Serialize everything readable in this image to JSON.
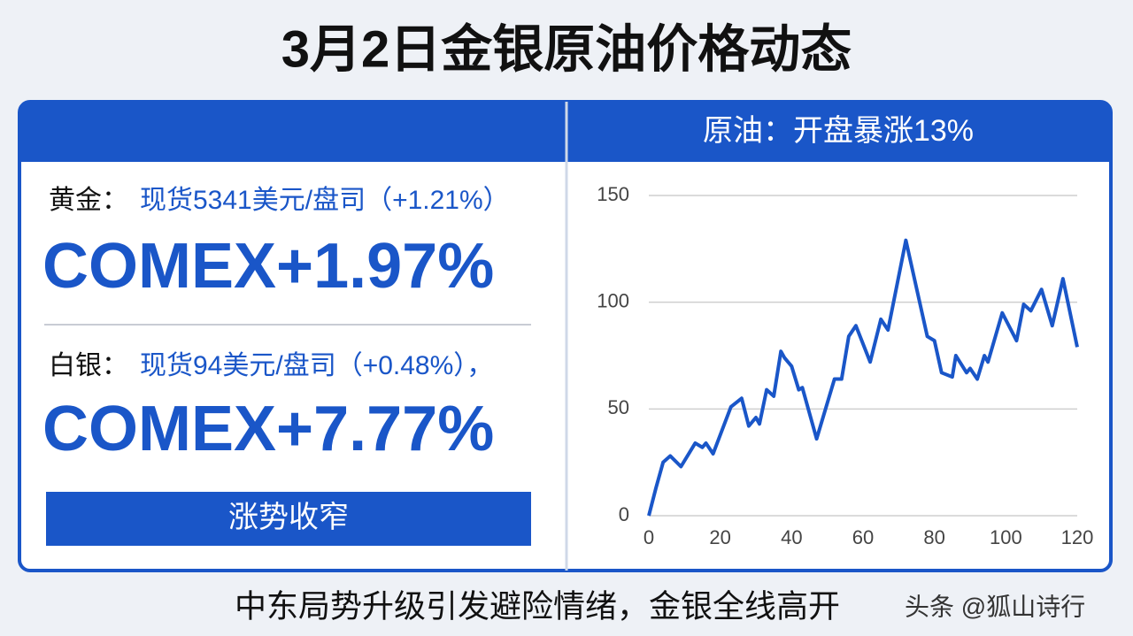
{
  "title": "3月2日金银原油价格动态",
  "gold": {
    "label": "黄金：",
    "spot": "现货5341美元/盘司（+1.21%）",
    "comex": "COMEX+1.97%"
  },
  "silver": {
    "label": "白银：",
    "spot": "现货94美元/盘司（+0.48%），",
    "comex": "COMEX+7.77%"
  },
  "tag": "涨势收窄",
  "chart_data": {
    "type": "line",
    "title": "原油：开盘暴涨13%",
    "x": [
      0,
      2,
      4,
      6,
      9,
      13,
      15,
      16,
      18,
      23,
      26,
      28,
      30,
      31,
      33,
      35,
      37,
      38,
      40,
      42,
      43,
      47,
      52,
      54,
      56,
      58,
      62,
      65,
      67,
      72,
      78,
      80,
      82,
      85,
      86,
      89,
      90,
      92,
      94,
      95,
      99,
      103,
      105,
      107,
      110,
      113,
      116,
      120
    ],
    "values": [
      0,
      13,
      25,
      28,
      23,
      34,
      32,
      34,
      29,
      51,
      55,
      42,
      46,
      43,
      59,
      56,
      77,
      74,
      70,
      59,
      60,
      36,
      64,
      64,
      84,
      89,
      72,
      92,
      87,
      129,
      84,
      82,
      67,
      65,
      75,
      67,
      69,
      64,
      75,
      72,
      95,
      82,
      99,
      96,
      106,
      89,
      111,
      79
    ],
    "color": "#1a56c8",
    "xlim": [
      0,
      120
    ],
    "ylim": [
      0,
      150
    ],
    "xticks": [
      0,
      20,
      40,
      60,
      80,
      100,
      120
    ],
    "yticks": [
      0,
      50,
      100,
      150
    ],
    "grid": true
  },
  "footer": "中东局势升级引发避险情绪，金银全线高开",
  "watermark": "头条 @狐山诗行"
}
